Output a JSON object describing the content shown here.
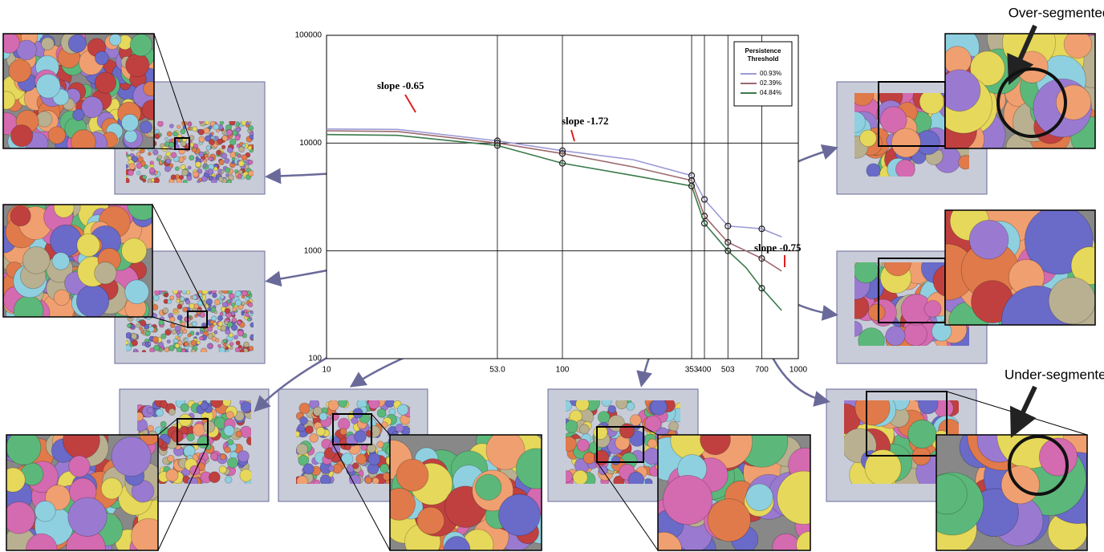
{
  "chart_data": {
    "type": "line",
    "xscale": "log",
    "yscale": "log",
    "xlim": [
      10,
      1000
    ],
    "ylim": [
      100,
      100000
    ],
    "xticks": [
      10,
      {
        "value": 53,
        "label": "53.0"
      },
      100,
      353,
      400,
      503,
      700,
      1000
    ],
    "yticks": [
      100,
      1000,
      10000,
      100000
    ],
    "grid": true,
    "legend_title": "Persistence Threshold",
    "legend": "upper right",
    "x": [
      10,
      20,
      53,
      100,
      200,
      353,
      400,
      503,
      600,
      700,
      850
    ],
    "series": [
      {
        "name": "00.93%",
        "color": "#9c9ad6",
        "values": [
          13500,
          13400,
          10500,
          8500,
          7000,
          5000,
          3000,
          1700,
          1650,
          1600,
          1350
        ]
      },
      {
        "name": "02.39%",
        "color": "#9b6a6e",
        "values": [
          13000,
          12800,
          10000,
          8000,
          6000,
          4500,
          2100,
          1200,
          1000,
          850,
          650
        ]
      },
      {
        "name": "04.84%",
        "color": "#3a7a4a",
        "values": [
          12000,
          11800,
          9500,
          6500,
          5000,
          4000,
          1800,
          1000,
          700,
          450,
          280
        ]
      }
    ],
    "annotations": [
      "slope -0.65",
      "slope -1.72",
      "slope -0.75"
    ]
  },
  "labels": [
    "Over-segmented",
    "Under-segmented"
  ]
}
